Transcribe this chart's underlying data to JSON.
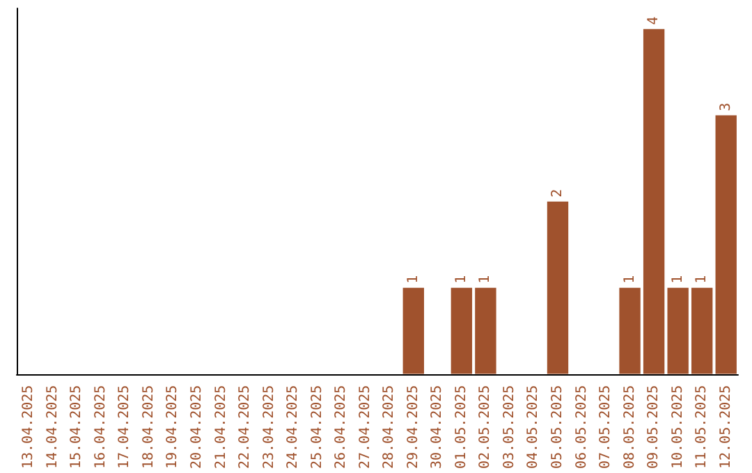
{
  "chart_data": {
    "type": "bar",
    "categories": [
      "13.04.2025",
      "14.04.2025",
      "15.04.2025",
      "16.04.2025",
      "17.04.2025",
      "18.04.2025",
      "19.04.2025",
      "20.04.2025",
      "21.04.2025",
      "22.04.2025",
      "23.04.2025",
      "24.04.2025",
      "25.04.2025",
      "26.04.2025",
      "27.04.2025",
      "28.04.2025",
      "29.04.2025",
      "30.04.2025",
      "01.05.2025",
      "02.05.2025",
      "03.05.2025",
      "04.05.2025",
      "05.05.2025",
      "06.05.2025",
      "07.05.2025",
      "08.05.2025",
      "09.05.2025",
      "10.05.2025",
      "11.05.2025",
      "12.05.2025"
    ],
    "values": [
      null,
      null,
      null,
      null,
      null,
      null,
      null,
      null,
      null,
      null,
      null,
      null,
      null,
      null,
      null,
      null,
      1,
      null,
      1,
      1,
      null,
      null,
      2,
      null,
      null,
      1,
      4,
      1,
      1,
      3
    ],
    "color": "#a0522d",
    "tick_labels": "x",
    "data_labels": true
  }
}
